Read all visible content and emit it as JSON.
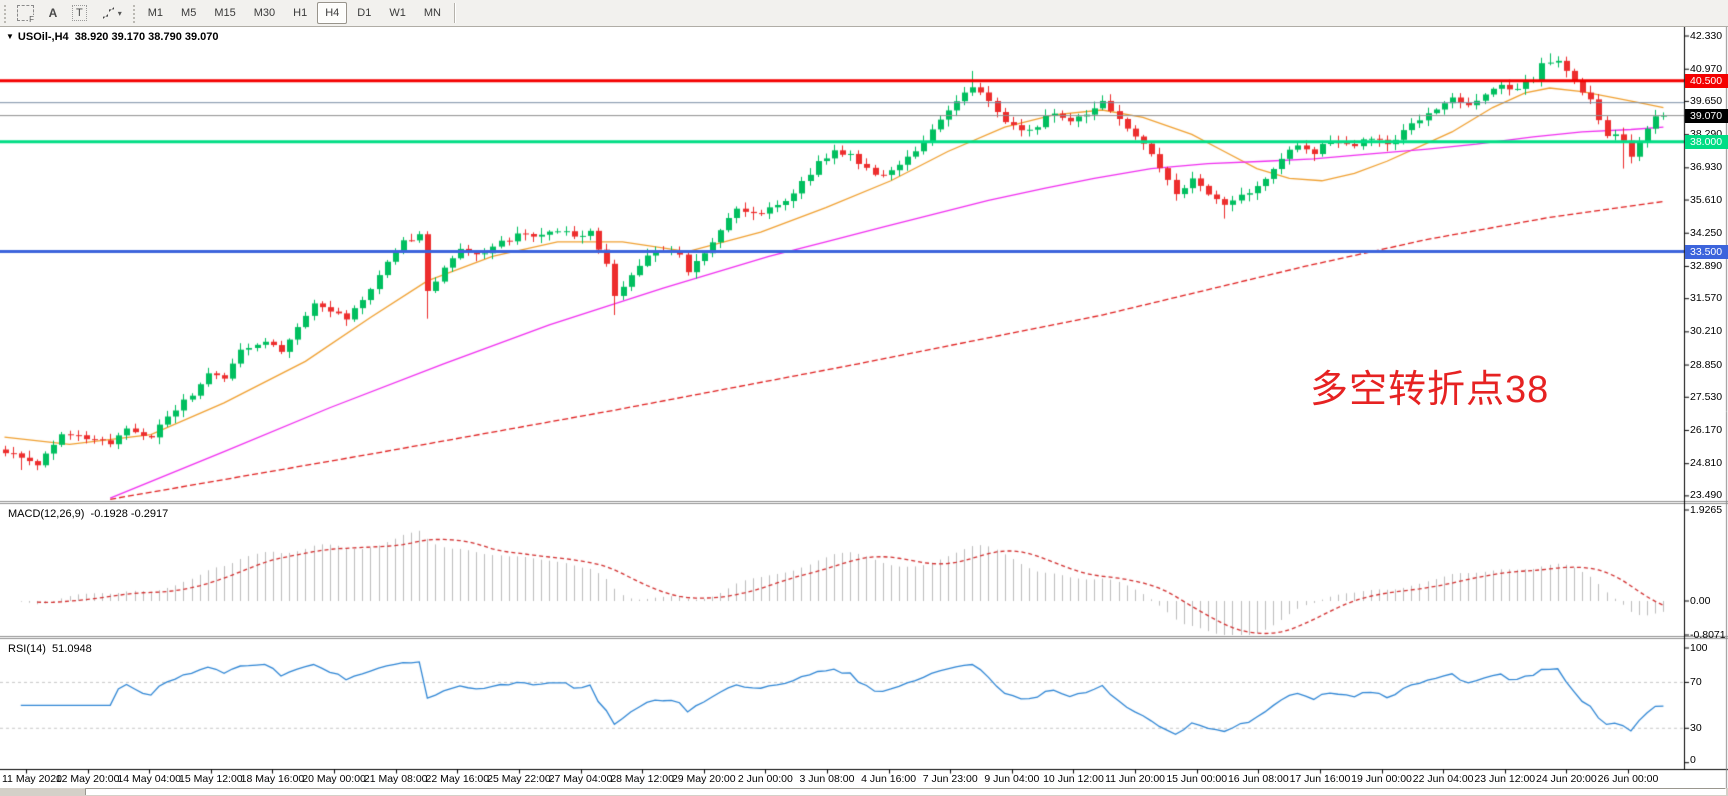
{
  "toolbar": {
    "tools": [
      {
        "name": "fibonacci-tool",
        "glyph": "F"
      },
      {
        "name": "text-tool",
        "label": "A"
      },
      {
        "name": "label-tool",
        "label": "T"
      },
      {
        "name": "arrows-tool",
        "glyph": "arrows",
        "caret": "▾"
      }
    ],
    "timeframes": [
      "M1",
      "M5",
      "M15",
      "M30",
      "H1",
      "H4",
      "D1",
      "W1",
      "MN"
    ],
    "active_timeframe": "H4"
  },
  "title": {
    "collapse_glyph": "▼",
    "symbol_text": "USOil-,H4",
    "ohlc_text": "38.920 39.170 38.790 39.070"
  },
  "annotation": {
    "text": "多空转折点38",
    "color": "#e62222"
  },
  "chart_data": {
    "type": "candlestick+indicators",
    "symbol": "USOil-",
    "timeframe": "H4",
    "open": "38.920",
    "high": "39.170",
    "low": "38.790",
    "close": "39.070",
    "bars_total": 205,
    "close_waypoints": [
      [
        0,
        25.3
      ],
      [
        4,
        24.8
      ],
      [
        7,
        26.1
      ],
      [
        10,
        25.8
      ],
      [
        13,
        25.6
      ],
      [
        15,
        26.3
      ],
      [
        18,
        25.9
      ],
      [
        20,
        26.8
      ],
      [
        23,
        27.6
      ],
      [
        25,
        28.6
      ],
      [
        27,
        28.2
      ],
      [
        29,
        29.4
      ],
      [
        32,
        29.9
      ],
      [
        34,
        29.5
      ],
      [
        36,
        30.5
      ],
      [
        38,
        31.3
      ],
      [
        41,
        31.0
      ],
      [
        42,
        30.7
      ],
      [
        45,
        31.9
      ],
      [
        47,
        33.1
      ],
      [
        49,
        33.9
      ],
      [
        51,
        34.2
      ],
      [
        52,
        31.9
      ],
      [
        54,
        32.8
      ],
      [
        56,
        33.6
      ],
      [
        58,
        33.3
      ],
      [
        60,
        33.7
      ],
      [
        62,
        34.0
      ],
      [
        64,
        34.3
      ],
      [
        66,
        34.1
      ],
      [
        68,
        34.4
      ],
      [
        70,
        34.2
      ],
      [
        72,
        34.3
      ],
      [
        74,
        33.0
      ],
      [
        75,
        31.7
      ],
      [
        77,
        32.5
      ],
      [
        79,
        33.3
      ],
      [
        81,
        33.6
      ],
      [
        83,
        33.4
      ],
      [
        84,
        32.7
      ],
      [
        87,
        33.8
      ],
      [
        89,
        34.8
      ],
      [
        90,
        35.2
      ],
      [
        92,
        35.0
      ],
      [
        94,
        35.3
      ],
      [
        96,
        35.6
      ],
      [
        98,
        36.3
      ],
      [
        100,
        37.2
      ],
      [
        102,
        37.6
      ],
      [
        104,
        37.4
      ],
      [
        106,
        36.9
      ],
      [
        108,
        36.6
      ],
      [
        110,
        37.1
      ],
      [
        112,
        37.6
      ],
      [
        114,
        38.4
      ],
      [
        116,
        39.3
      ],
      [
        119,
        40.3
      ],
      [
        120,
        40.0
      ],
      [
        121,
        39.6
      ],
      [
        123,
        38.9
      ],
      [
        125,
        38.4
      ],
      [
        127,
        38.7
      ],
      [
        129,
        39.2
      ],
      [
        131,
        38.9
      ],
      [
        134,
        39.3
      ],
      [
        135,
        39.6
      ],
      [
        137,
        38.9
      ],
      [
        139,
        38.2
      ],
      [
        141,
        37.5
      ],
      [
        143,
        36.5
      ],
      [
        144,
        35.8
      ],
      [
        146,
        36.4
      ],
      [
        148,
        35.8
      ],
      [
        150,
        35.4
      ],
      [
        152,
        35.9
      ],
      [
        154,
        36.1
      ],
      [
        155,
        36.5
      ],
      [
        157,
        37.3
      ],
      [
        159,
        37.9
      ],
      [
        161,
        37.6
      ],
      [
        163,
        38.1
      ],
      [
        166,
        37.8
      ],
      [
        168,
        38.2
      ],
      [
        170,
        37.9
      ],
      [
        172,
        38.4
      ],
      [
        174,
        38.9
      ],
      [
        176,
        39.3
      ],
      [
        178,
        39.8
      ],
      [
        180,
        39.5
      ],
      [
        182,
        40.0
      ],
      [
        184,
        40.3
      ],
      [
        186,
        40.1
      ],
      [
        188,
        40.6
      ],
      [
        189,
        41.2
      ],
      [
        191,
        41.4
      ],
      [
        192,
        40.9
      ],
      [
        193,
        40.4
      ],
      [
        195,
        39.8
      ],
      [
        196,
        38.9
      ],
      [
        197,
        38.2
      ],
      [
        198,
        38.4
      ],
      [
        199,
        38.0
      ],
      [
        200,
        37.4
      ],
      [
        201,
        37.9
      ],
      [
        202,
        38.6
      ],
      [
        203,
        39.0
      ],
      [
        204,
        39.07
      ]
    ],
    "wick_events": [
      {
        "bar": 2,
        "low": 24.55
      },
      {
        "bar": 52,
        "low": 30.75
      },
      {
        "bar": 75,
        "low": 30.9
      },
      {
        "bar": 119,
        "high": 40.9
      },
      {
        "bar": 135,
        "high": 39.9
      },
      {
        "bar": 150,
        "low": 34.85
      },
      {
        "bar": 190,
        "high": 41.62
      },
      {
        "bar": 191,
        "high": 41.5
      },
      {
        "bar": 199,
        "low": 36.9
      }
    ],
    "candle_colors": {
      "up": "#00bf5f",
      "down": "#ed2d2d"
    },
    "price_axis_ticks": [
      "42.330",
      "40.970",
      "39.650",
      "38.290",
      "36.930",
      "35.610",
      "34.250",
      "32.890",
      "31.570",
      "30.210",
      "28.850",
      "27.530",
      "26.170",
      "24.810",
      "23.490"
    ],
    "hlines": [
      {
        "price": 40.5,
        "label": "40.500",
        "color": "#f40000",
        "width": 3
      },
      {
        "price": 38.0,
        "label": "38.000",
        "color": "#00dd85",
        "width": 3
      },
      {
        "price": 33.5,
        "label": "33.500",
        "color": "#3c64dc",
        "width": 3
      },
      {
        "price": 39.6,
        "label": "",
        "color": "#7a8fa6",
        "width": 1
      }
    ],
    "current_price": {
      "value": 39.07,
      "label": "39.070",
      "line_color": "#8f8f8f",
      "tag_bg": "#000000"
    },
    "moving_averages": [
      {
        "name": "ma-fast-orange",
        "color": "#f0a030",
        "dash": [],
        "points": [
          [
            0,
            25.9
          ],
          [
            8,
            25.6
          ],
          [
            18,
            26.0
          ],
          [
            27,
            27.3
          ],
          [
            37,
            29.0
          ],
          [
            45,
            30.8
          ],
          [
            52,
            32.3
          ],
          [
            60,
            33.3
          ],
          [
            68,
            33.9
          ],
          [
            76,
            33.9
          ],
          [
            84,
            33.5
          ],
          [
            93,
            34.3
          ],
          [
            101,
            35.3
          ],
          [
            109,
            36.4
          ],
          [
            116,
            37.6
          ],
          [
            123,
            38.6
          ],
          [
            129,
            39.1
          ],
          [
            135,
            39.3
          ],
          [
            140,
            39.0
          ],
          [
            146,
            38.3
          ],
          [
            150,
            37.6
          ],
          [
            154,
            36.9
          ],
          [
            158,
            36.5
          ],
          [
            162,
            36.4
          ],
          [
            166,
            36.7
          ],
          [
            170,
            37.2
          ],
          [
            174,
            37.8
          ],
          [
            178,
            38.4
          ],
          [
            183,
            39.4
          ],
          [
            187,
            40.0
          ],
          [
            190,
            40.2
          ],
          [
            194,
            40.05
          ],
          [
            198,
            39.8
          ],
          [
            201,
            39.6
          ],
          [
            204,
            39.4
          ]
        ]
      },
      {
        "name": "ma-mid-magenta",
        "color": "#f02df0",
        "dash": [],
        "points": [
          [
            13,
            23.4
          ],
          [
            27,
            25.3
          ],
          [
            40,
            27.1
          ],
          [
            54,
            28.9
          ],
          [
            67,
            30.5
          ],
          [
            81,
            32.0
          ],
          [
            94,
            33.3
          ],
          [
            101,
            33.9
          ],
          [
            108,
            34.5
          ],
          [
            121,
            35.6
          ],
          [
            128,
            36.1
          ],
          [
            134,
            36.5
          ],
          [
            141,
            36.9
          ],
          [
            148,
            37.1
          ],
          [
            155,
            37.2
          ],
          [
            161,
            37.3
          ],
          [
            168,
            37.5
          ],
          [
            175,
            37.7
          ],
          [
            181,
            37.9
          ],
          [
            188,
            38.2
          ],
          [
            194,
            38.4
          ],
          [
            200,
            38.5
          ],
          [
            204,
            38.6
          ]
        ]
      },
      {
        "name": "ma-slow-red",
        "color": "#e02020",
        "dash": [
          6,
          3
        ],
        "points": [
          [
            13,
            23.35
          ],
          [
            45,
            25.2
          ],
          [
            75,
            27.0
          ],
          [
            105,
            28.9
          ],
          [
            135,
            30.9
          ],
          [
            160,
            32.9
          ],
          [
            175,
            34.0
          ],
          [
            190,
            34.9
          ],
          [
            204,
            35.55
          ]
        ]
      }
    ],
    "macd": {
      "label": "MACD(12,26,9)",
      "values_text": "-0.1928 -0.2917",
      "fast": 12,
      "slow": 26,
      "signal": 9,
      "histogram_color": "#bdbdbd",
      "signal_color": "#d23030",
      "scale_ticks": [
        "1.9265",
        "0.00",
        "-0.8071"
      ]
    },
    "rsi": {
      "label": "RSI(14)",
      "value_text": "51.0948",
      "period": 14,
      "line_color": "#2f86d5",
      "levels": [
        70,
        30
      ],
      "scale_ticks": [
        "100",
        "70",
        "30",
        "0"
      ]
    },
    "time_axis": [
      "11 May 2020",
      "12 May 20:00",
      "14 May 04:00",
      "15 May 12:00",
      "18 May 16:00",
      "20 May 00:00",
      "21 May 08:00",
      "22 May 16:00",
      "25 May 22:00",
      "27 May 04:00",
      "28 May 12:00",
      "29 May 20:00",
      "2 Jun 00:00",
      "3 Jun 08:00",
      "4 Jun 16:00",
      "7 Jun 23:00",
      "9 Jun 04:00",
      "10 Jun 12:00",
      "11 Jun 20:00",
      "15 Jun 00:00",
      "16 Jun 08:00",
      "17 Jun 16:00",
      "19 Jun 00:00",
      "22 Jun 04:00",
      "23 Jun 12:00",
      "24 Jun 20:00",
      "26 Jun 00:00"
    ]
  }
}
